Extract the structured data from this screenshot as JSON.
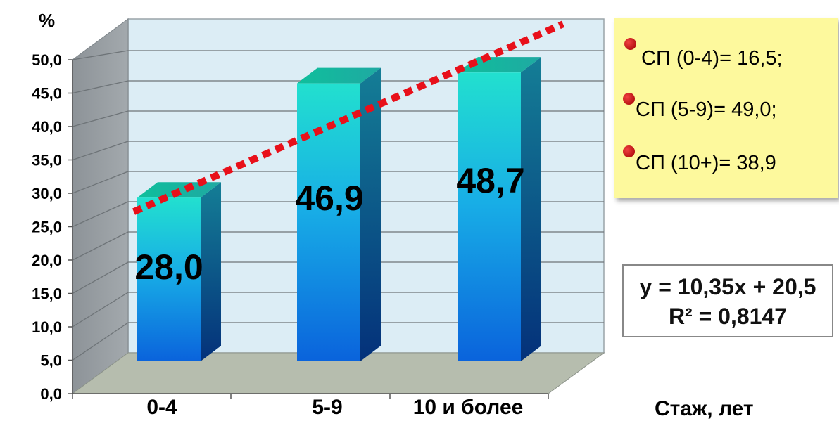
{
  "chart_data": {
    "type": "bar",
    "title": "",
    "ylabel": "%",
    "xlabel": "Стаж, лет",
    "categories": [
      "0-4",
      "5-9",
      "10 и более"
    ],
    "values": [
      28.0,
      46.9,
      48.7
    ],
    "value_labels": [
      "28,0",
      "46,9",
      "48,7"
    ],
    "ylim": [
      0,
      50
    ],
    "yticks": [
      "0,0",
      "5,0",
      "10,0",
      "15,0",
      "20,0",
      "25,0",
      "30,0",
      "35,0",
      "40,0",
      "45,0",
      "50,0"
    ],
    "grid": true,
    "style": "3d-column",
    "trendline": {
      "type": "linear",
      "slope": 10.35,
      "intercept": 20.5,
      "equation": "y = 10,35x + 20,5",
      "r_squared": "R² = 0,8147",
      "color": "#e8101a"
    },
    "legend": {
      "placement": "top-right",
      "items": [
        "СП (0-4)= 16,5;",
        "СП (5-9)= 49,0;",
        "СП (10+)= 38,9"
      ]
    },
    "colors": {
      "bar_top": "#1fd7d0",
      "bar_bottom": "#0b5fd8",
      "wall": "#dcedf5",
      "floor": "#b6bdae",
      "side_wall": "#8a9096"
    }
  }
}
